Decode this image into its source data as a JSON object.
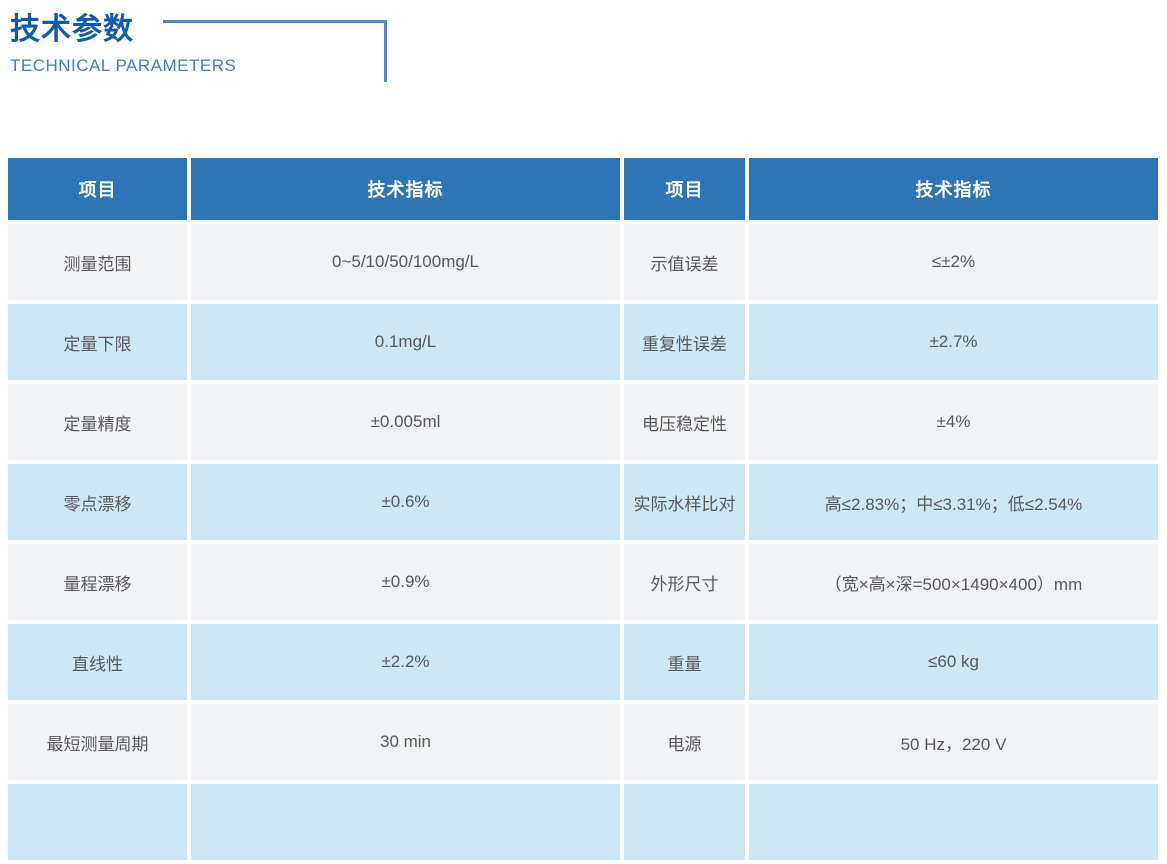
{
  "theme": {
    "page_bg": "#FFFFFF",
    "title_color": "#0F5CAD",
    "subtitle_color": "#4080C0",
    "bracket_color": "#4E86C6",
    "table_header_bg": "#2E75B6",
    "table_header_text": "#FFFFFF",
    "row_gray": "#F2F3F4",
    "row_blue": "#CDE7F5",
    "cell_text": "#58595B"
  },
  "header": {
    "title": "技术参数",
    "subtitle": "TECHNICAL PARAMETERS"
  },
  "table": {
    "columns": [
      "项目",
      "技术指标",
      "项目",
      "技术指标"
    ],
    "rows": [
      [
        "测量范围",
        "0~5/10/50/100mg/L",
        "示值误差",
        "≤±2%"
      ],
      [
        "定量下限",
        "0.1mg/L",
        "重复性误差",
        "±2.7%"
      ],
      [
        "定量精度",
        "±0.005ml",
        "电压稳定性",
        "±4%"
      ],
      [
        "零点漂移",
        "±0.6%",
        "实际水样比对",
        "高≤2.83%；中≤3.31%；低≤2.54%"
      ],
      [
        "量程漂移",
        "±0.9%",
        "外形尺寸",
        "（宽×高×深=500×1490×400）mm"
      ],
      [
        "直线性",
        "±2.2%",
        "重量",
        "≤60 kg"
      ],
      [
        "最短测量周期",
        "30 min",
        "电源",
        "50 Hz，220 V"
      ],
      [
        "",
        "",
        "",
        ""
      ]
    ]
  }
}
